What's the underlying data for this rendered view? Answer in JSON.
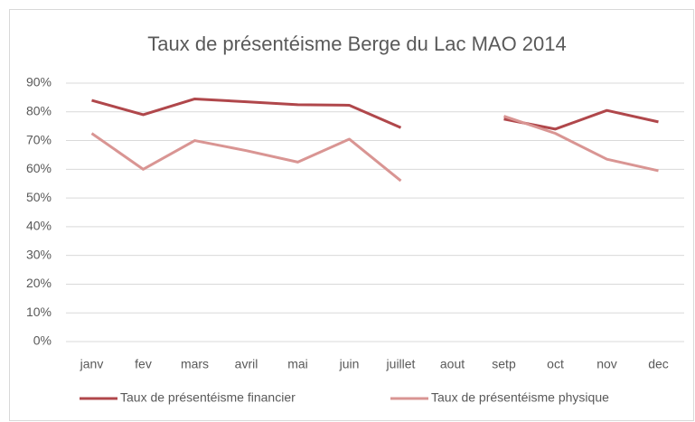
{
  "chart_data": {
    "type": "line",
    "title": "Taux de présentéisme Berge du Lac MAO 2014",
    "categories": [
      "janv",
      "fev",
      "mars",
      "avril",
      "mai",
      "juin",
      "juillet",
      "aout",
      "setp",
      "oct",
      "nov",
      "dec"
    ],
    "series": [
      {
        "name": "Taux de présentéisme financier",
        "color": "#b0474b",
        "values": [
          84,
          79,
          84.5,
          83.5,
          82.5,
          82.3,
          74.5,
          null,
          77.5,
          74,
          80.5,
          76.5
        ]
      },
      {
        "name": "Taux de présentéisme physique",
        "color": "#d99593",
        "values": [
          72.5,
          60,
          70,
          66.5,
          62.5,
          70.5,
          56,
          null,
          78.5,
          72.5,
          63.5,
          59.5
        ]
      }
    ],
    "ylim": [
      0,
      90
    ],
    "yticks": [
      {
        "value": 0,
        "label": "0%"
      },
      {
        "value": 10,
        "label": "10%"
      },
      {
        "value": 20,
        "label": "20%"
      },
      {
        "value": 30,
        "label": "30%"
      },
      {
        "value": 40,
        "label": "40%"
      },
      {
        "value": 50,
        "label": "50%"
      },
      {
        "value": 60,
        "label": "60%"
      },
      {
        "value": 70,
        "label": "70%"
      },
      {
        "value": 80,
        "label": "80%"
      },
      {
        "value": 90,
        "label": "90%"
      }
    ],
    "grid": true,
    "legend": "bottom"
  }
}
